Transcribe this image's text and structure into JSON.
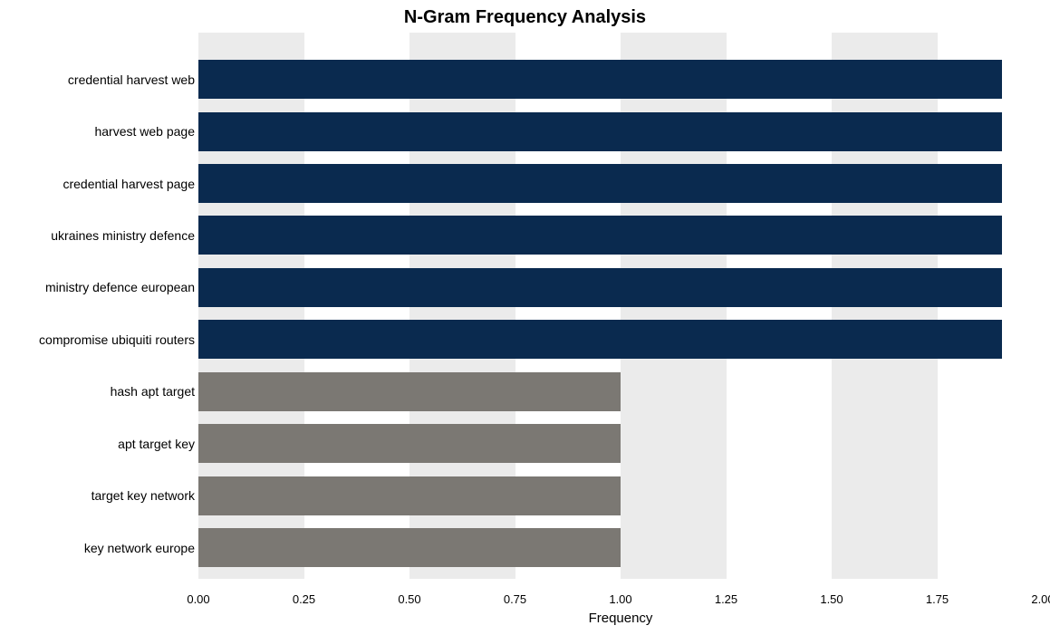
{
  "chart": {
    "type": "bar-horizontal",
    "title": "N-Gram Frequency Analysis",
    "title_fontsize": 20,
    "title_fontweight": "bold",
    "xlabel": "Frequency",
    "xlabel_fontsize": 15,
    "background_color": "#ffffff",
    "plot_background": "#ffffff",
    "gridband_color": "#ebebeb",
    "xlim": [
      0,
      2.0
    ],
    "xtick_step": 0.25,
    "xticks": [
      "0.00",
      "0.25",
      "0.50",
      "0.75",
      "1.00",
      "1.25",
      "1.50",
      "1.75",
      "2.00"
    ],
    "bar_height_ratio": 0.75,
    "label_fontsize": 14,
    "tick_fontsize": 13,
    "categories": [
      "credential harvest web",
      "harvest web page",
      "credential harvest page",
      "ukraines ministry defence",
      "ministry defence european",
      "compromise ubiquiti routers",
      "hash apt target",
      "apt target key",
      "target key network",
      "key network europe"
    ],
    "values": [
      2,
      2,
      2,
      2,
      2,
      2,
      1,
      1,
      1,
      1
    ],
    "bar_colors": [
      "#0a2a4f",
      "#0a2a4f",
      "#0a2a4f",
      "#0a2a4f",
      "#0a2a4f",
      "#0a2a4f",
      "#7b7873",
      "#7b7873",
      "#7b7873",
      "#7b7873"
    ]
  }
}
